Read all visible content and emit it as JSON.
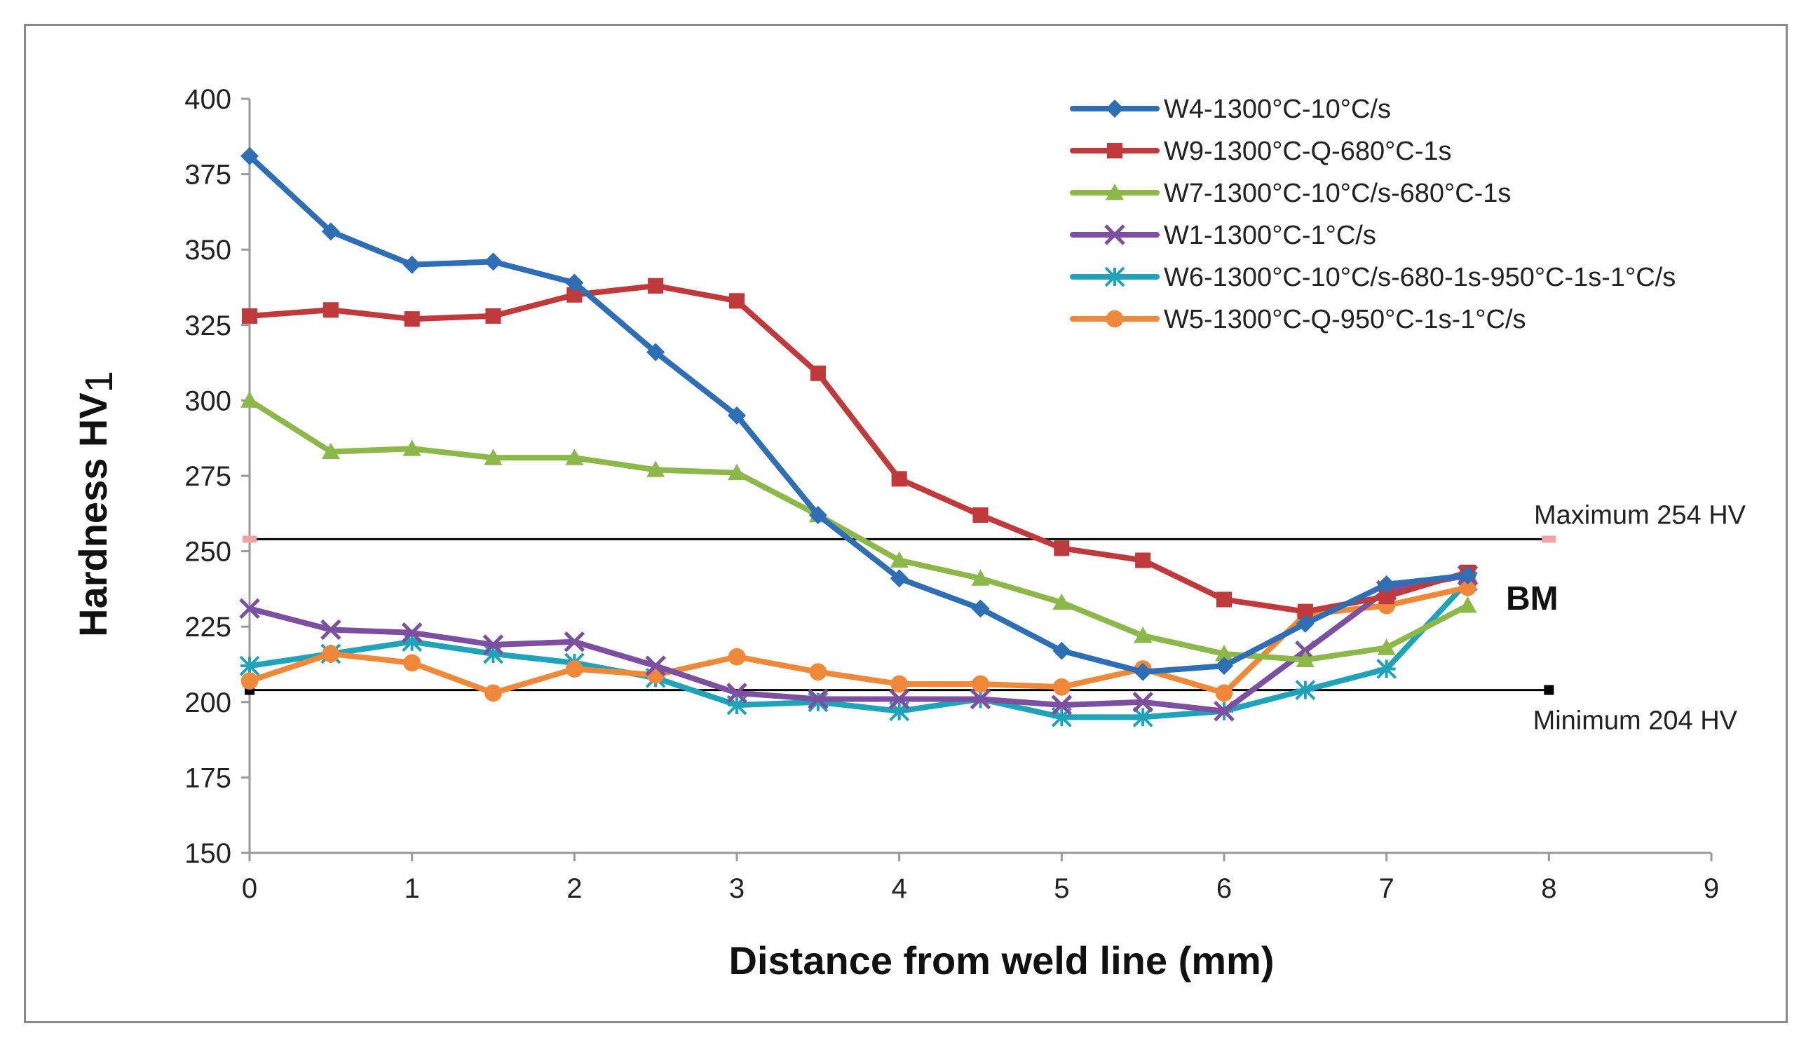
{
  "chart_data": {
    "type": "line",
    "title": "",
    "xlabel": "Distance from weld line (mm)",
    "ylabel_main": "Hardness HV",
    "ylabel_sub": "1",
    "xlim": [
      0,
      9
    ],
    "ylim": [
      150,
      400
    ],
    "xticks": [
      0,
      1,
      2,
      3,
      4,
      5,
      6,
      7,
      8,
      9
    ],
    "yticks": [
      150,
      175,
      200,
      225,
      250,
      275,
      300,
      325,
      350,
      375,
      400
    ],
    "grid": false,
    "legend_position": "top-right",
    "x": [
      0,
      0.5,
      1,
      1.5,
      2,
      2.5,
      3,
      3.5,
      4,
      4.5,
      5,
      5.5,
      6,
      6.5,
      7,
      7.5
    ],
    "series": [
      {
        "name": "W4-1300°C-10°C/s",
        "color": "#2e6eb5",
        "marker": "diamond",
        "values": [
          381,
          356,
          345,
          346,
          339,
          316,
          295,
          262,
          241,
          231,
          217,
          210,
          212,
          226,
          239,
          242
        ]
      },
      {
        "name": "W9-1300°C-Q-680°C-1s",
        "color": "#c0393b",
        "marker": "square",
        "values": [
          328,
          330,
          327,
          328,
          335,
          338,
          333,
          309,
          274,
          262,
          251,
          247,
          234,
          230,
          235,
          243
        ]
      },
      {
        "name": "W7-1300°C-10°C/s-680°C-1s",
        "color": "#8cb84a",
        "marker": "triangle",
        "values": [
          300,
          283,
          284,
          281,
          281,
          277,
          276,
          262,
          247,
          241,
          233,
          222,
          216,
          214,
          218,
          232
        ]
      },
      {
        "name": "W1-1300°C-1°C/s",
        "color": "#7d4fa0",
        "marker": "x",
        "values": [
          231,
          224,
          223,
          219,
          220,
          212,
          203,
          201,
          201,
          201,
          199,
          200,
          197,
          217,
          237,
          242
        ]
      },
      {
        "name": "W6-1300°C-10°C/s-680-1s-950°C-1s-1°C/s",
        "color": "#1ea3b9",
        "marker": "star",
        "values": [
          212,
          216,
          220,
          216,
          213,
          208,
          199,
          200,
          197,
          201,
          195,
          195,
          197,
          204,
          211,
          240
        ]
      },
      {
        "name": "W5-1300°C-Q-950°C-1s-1°C/s",
        "color": "#f0883a",
        "marker": "circle",
        "values": [
          207,
          216,
          213,
          203,
          211,
          209,
          215,
          210,
          206,
          206,
          205,
          211,
          203,
          229,
          232,
          238
        ]
      }
    ],
    "reference_lines": [
      {
        "label": "Maximum 254 HV",
        "value": 254,
        "x_range": [
          0,
          8
        ]
      },
      {
        "label": "Minimum 204 HV",
        "value": 204,
        "x_range": [
          0,
          8
        ]
      }
    ],
    "annotations": [
      {
        "text": "BM",
        "x": 7.85,
        "y": 229
      }
    ]
  }
}
